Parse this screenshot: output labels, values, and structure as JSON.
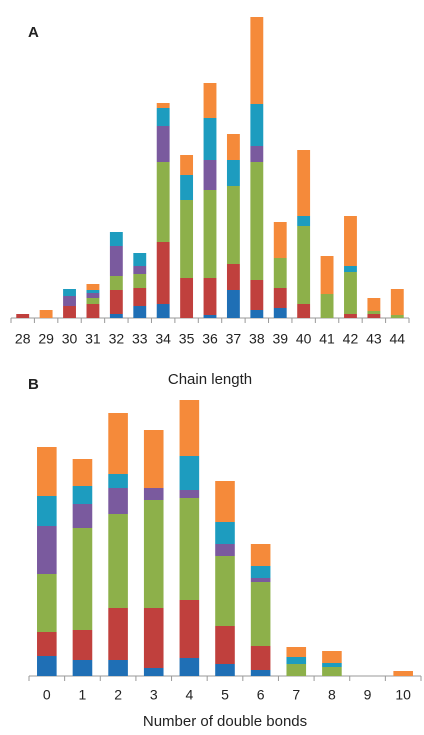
{
  "chart_data": [
    {
      "type": "bar",
      "stacked": true,
      "title": "A",
      "x_label": "Chain length",
      "categories": [
        "28",
        "29",
        "30",
        "31",
        "32",
        "33",
        "34",
        "35",
        "36",
        "37",
        "38",
        "39",
        "40",
        "41",
        "42",
        "43",
        "44"
      ],
      "series": [
        {
          "color": "#1f6fb5",
          "values": [
            0,
            0,
            0,
            0,
            4,
            12,
            14,
            0,
            3,
            28,
            8,
            10,
            0,
            0,
            0,
            0,
            0
          ]
        },
        {
          "color": "#c0403d",
          "values": [
            4,
            0,
            12,
            14,
            24,
            18,
            62,
            40,
            37,
            26,
            30,
            20,
            14,
            0,
            4,
            4,
            0
          ]
        },
        {
          "color": "#8db04a",
          "values": [
            0,
            0,
            0,
            6,
            14,
            14,
            80,
            78,
            88,
            78,
            118,
            30,
            78,
            24,
            42,
            3,
            3
          ]
        },
        {
          "color": "#7a5a9e",
          "values": [
            0,
            0,
            10,
            5,
            30,
            8,
            36,
            0,
            30,
            0,
            16,
            0,
            0,
            0,
            0,
            0,
            0
          ]
        },
        {
          "color": "#1d9cbf",
          "values": [
            0,
            0,
            7,
            3,
            14,
            13,
            18,
            25,
            42,
            26,
            42,
            0,
            10,
            0,
            6,
            0,
            0
          ]
        },
        {
          "color": "#f58a3a",
          "values": [
            0,
            8,
            0,
            6,
            0,
            0,
            5,
            20,
            35,
            26,
            87,
            36,
            66,
            38,
            50,
            13,
            26
          ]
        }
      ]
    },
    {
      "type": "bar",
      "stacked": true,
      "title": "B",
      "x_label": "Number of double bonds",
      "categories": [
        "0",
        "1",
        "2",
        "3",
        "4",
        "5",
        "6",
        "7",
        "8",
        "9",
        "10"
      ],
      "series": [
        {
          "color": "#1f6fb5",
          "values": [
            20,
            16,
            16,
            8,
            18,
            12,
            6,
            0,
            0,
            0,
            0
          ]
        },
        {
          "color": "#c0403d",
          "values": [
            24,
            30,
            52,
            60,
            58,
            38,
            24,
            0,
            0,
            0,
            0
          ]
        },
        {
          "color": "#8db04a",
          "values": [
            58,
            102,
            94,
            108,
            102,
            70,
            64,
            12,
            9,
            0,
            0
          ]
        },
        {
          "color": "#7a5a9e",
          "values": [
            48,
            24,
            26,
            12,
            8,
            12,
            4,
            0,
            0,
            0,
            0
          ]
        },
        {
          "color": "#1d9cbf",
          "values": [
            30,
            18,
            14,
            0,
            34,
            22,
            12,
            7,
            4,
            0,
            0
          ]
        },
        {
          "color": "#f58a3a",
          "values": [
            49,
            27,
            61,
            58,
            56,
            41,
            22,
            10,
            12,
            0,
            5
          ]
        }
      ]
    }
  ]
}
